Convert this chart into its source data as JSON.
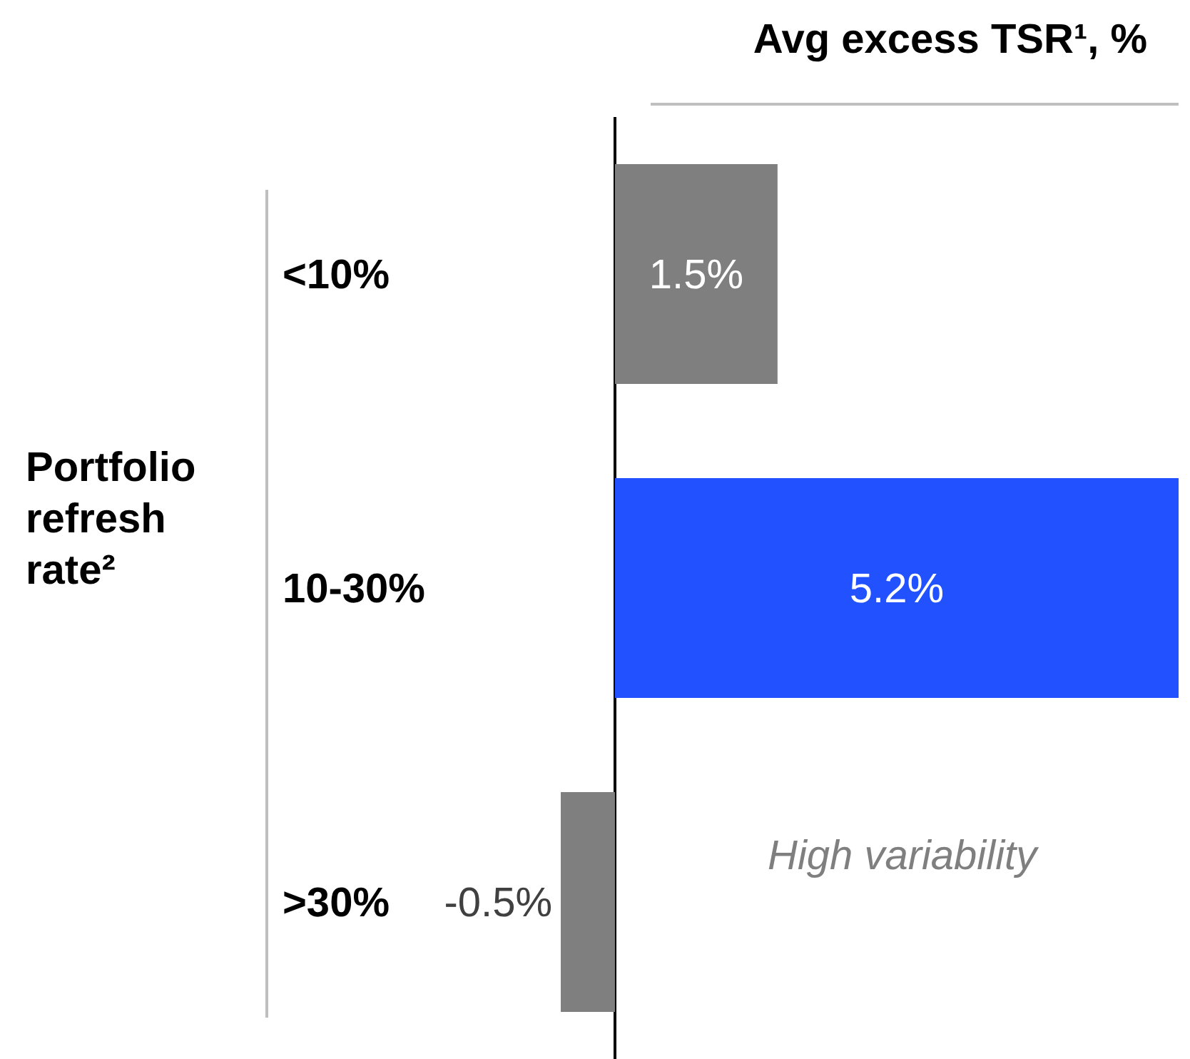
{
  "chart_data": {
    "type": "bar",
    "orientation": "horizontal",
    "title": "Avg excess TSR¹, %",
    "ylabel": "Portfolio refresh rate²",
    "categories": [
      "<10%",
      "10-30%",
      ">30%"
    ],
    "values": [
      1.5,
      5.2,
      -0.5
    ],
    "colors": [
      "#7f7f7f",
      "#2251ff",
      "#7f7f7f"
    ],
    "value_labels": [
      "1.5%",
      "5.2%",
      "-0.5%"
    ],
    "annotations": [
      "High variability"
    ]
  }
}
